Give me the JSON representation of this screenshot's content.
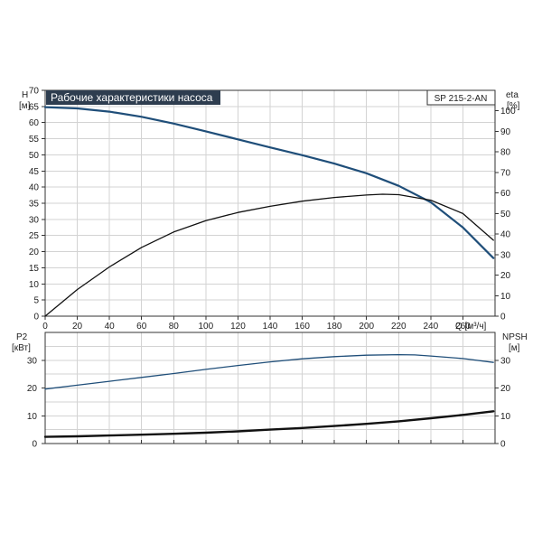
{
  "chart_data": [
    {
      "type": "line",
      "title": "Рабочие характеристики насоса",
      "model_label": "SP 215-2-AN",
      "xlabel": "Q [м³/ч]",
      "ylabel_left": [
        "H",
        "[м]"
      ],
      "ylabel_right": [
        "eta",
        "[%]"
      ],
      "xlim": [
        0,
        280
      ],
      "ylim_left": [
        0,
        70
      ],
      "ylim_right": [
        0,
        110
      ],
      "x_ticks": [
        0,
        20,
        40,
        60,
        80,
        100,
        120,
        140,
        160,
        180,
        200,
        220,
        240,
        260
      ],
      "y_ticks_left": [
        0,
        5,
        10,
        15,
        20,
        25,
        30,
        35,
        40,
        45,
        50,
        55,
        60,
        65,
        70
      ],
      "y_ticks_right": [
        0,
        10,
        20,
        30,
        40,
        50,
        60,
        70,
        80,
        90,
        100
      ],
      "grid": true,
      "series": [
        {
          "axis": "left",
          "color": "#1f4e79",
          "x": [
            0,
            20,
            40,
            60,
            80,
            100,
            120,
            140,
            160,
            180,
            200,
            220,
            240,
            260,
            279
          ],
          "values": [
            64.8,
            64.4,
            63.4,
            61.8,
            59.7,
            57.3,
            54.8,
            52.3,
            49.9,
            47.3,
            44.3,
            40.4,
            35.3,
            27.5,
            18.0
          ]
        },
        {
          "axis": "right",
          "color": "#111111",
          "x": [
            0,
            20,
            40,
            60,
            80,
            100,
            120,
            140,
            160,
            180,
            200,
            210,
            220,
            240,
            260,
            279
          ],
          "values": [
            0,
            13,
            24,
            33.5,
            41,
            46.5,
            50.5,
            53.5,
            56,
            57.8,
            59,
            59.4,
            59.2,
            56.5,
            50,
            37
          ]
        }
      ]
    },
    {
      "type": "line",
      "ylabel_left": [
        "P2",
        "[кВт]"
      ],
      "ylabel_right": [
        "NPSH",
        "[м]"
      ],
      "xlim": [
        0,
        280
      ],
      "ylim_left": [
        0,
        40
      ],
      "ylim_right": [
        0,
        40
      ],
      "y_ticks_left": [
        0,
        10,
        20,
        30
      ],
      "y_ticks_right": [
        0,
        10,
        20,
        30
      ],
      "grid": true,
      "series": [
        {
          "axis": "left",
          "color": "#1f4e79",
          "x": [
            0,
            20,
            40,
            60,
            80,
            100,
            120,
            140,
            160,
            180,
            200,
            220,
            230,
            240,
            260,
            279
          ],
          "values": [
            19.6,
            21.0,
            22.4,
            23.8,
            25.2,
            26.7,
            28.1,
            29.4,
            30.5,
            31.3,
            31.8,
            32.0,
            31.9,
            31.5,
            30.6,
            29.2
          ]
        },
        {
          "axis": "right",
          "color": "#111111",
          "x": [
            0,
            20,
            40,
            60,
            80,
            100,
            120,
            140,
            160,
            180,
            200,
            220,
            240,
            260,
            279
          ],
          "values": [
            2.4,
            2.6,
            2.9,
            3.2,
            3.5,
            3.9,
            4.4,
            5.0,
            5.6,
            6.3,
            7.1,
            8.0,
            9.1,
            10.3,
            11.6
          ]
        }
      ]
    }
  ]
}
